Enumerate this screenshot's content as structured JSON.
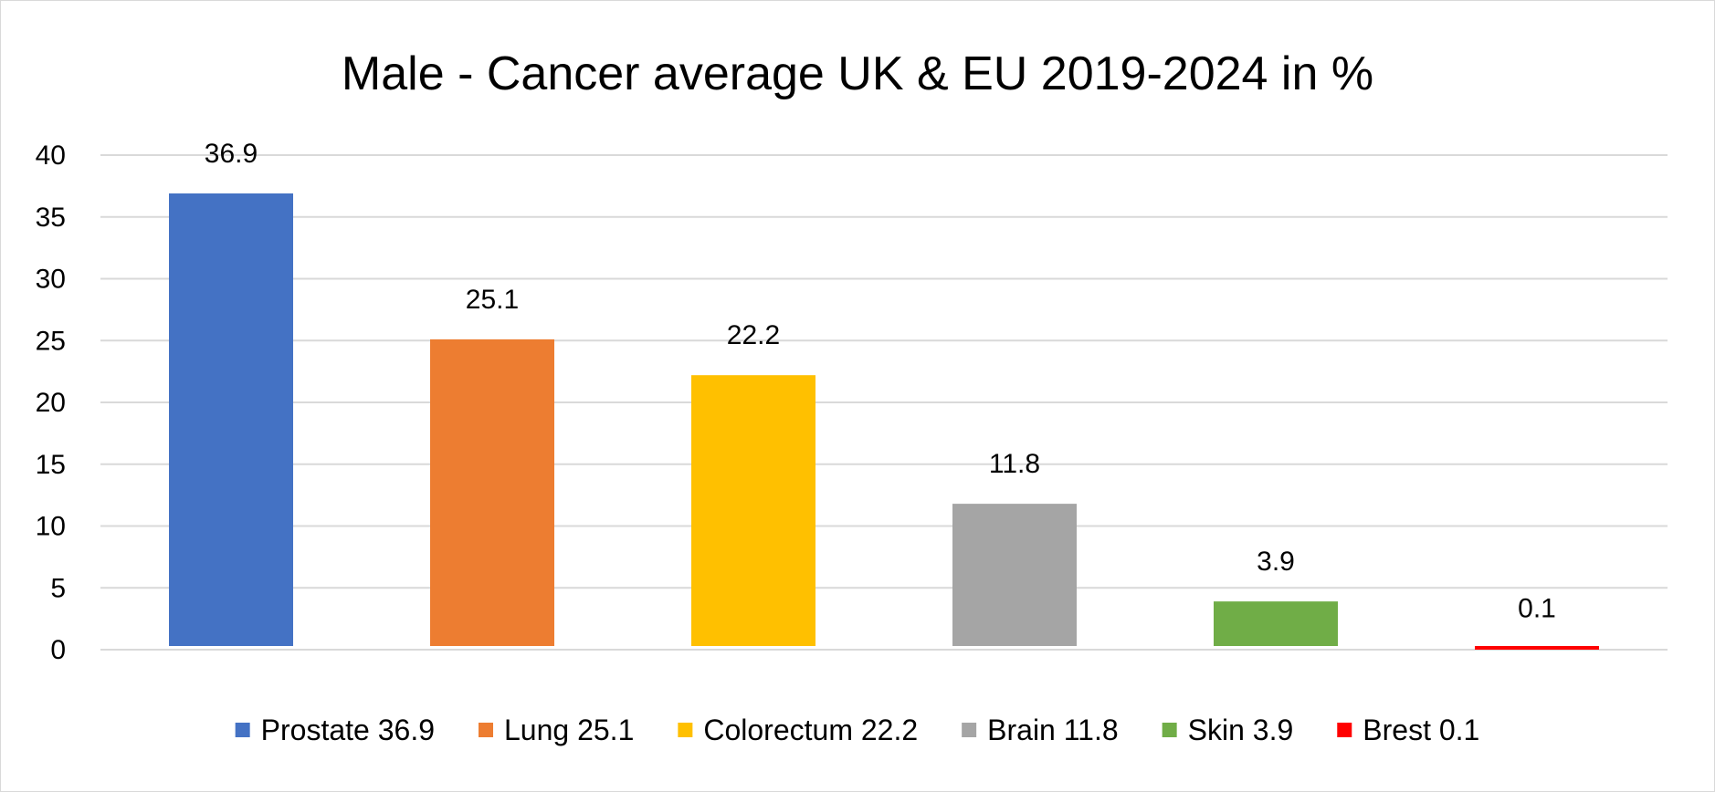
{
  "chart_data": {
    "type": "bar",
    "title": "Male - Cancer average UK & EU 2019-2024 in %",
    "xlabel": "",
    "ylabel": "",
    "ylim": [
      0,
      40
    ],
    "yticks": [
      "0",
      "5",
      "10",
      "15",
      "20",
      "25",
      "30",
      "35",
      "40"
    ],
    "grid": true,
    "legend_position": "bottom",
    "series": [
      {
        "name": "Prostate 36.9",
        "value": 36.9,
        "label": "36.9",
        "color": "#4472c4"
      },
      {
        "name": "Lung 25.1",
        "value": 25.1,
        "label": "25.1",
        "color": "#ed7d31"
      },
      {
        "name": "Colorectum 22.2",
        "value": 22.2,
        "label": "22.2",
        "color": "#ffc000"
      },
      {
        "name": "Brain 11.8",
        "value": 11.8,
        "label": "11.8",
        "color": "#a5a5a5"
      },
      {
        "name": "Skin 3.9",
        "value": 3.9,
        "label": "3.9",
        "color": "#70ad47"
      },
      {
        "name": "Brest 0.1",
        "value": 0.1,
        "label": "0.1",
        "color": "#ff0000"
      }
    ]
  }
}
